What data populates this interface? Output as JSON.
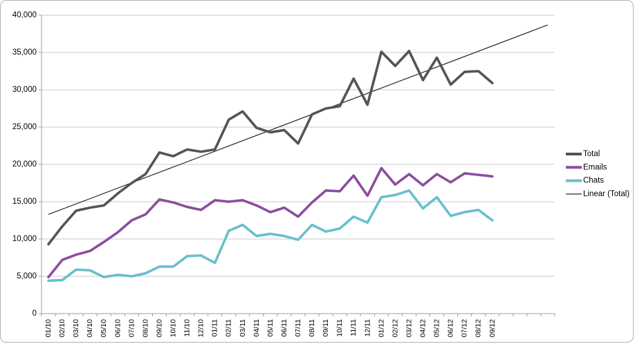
{
  "window": {
    "background": "#ffffff",
    "border_color": "#b2b2b2"
  },
  "style": {
    "gridline_color": "#c9c9c9",
    "axis_color": "#9c9c9c",
    "label_color": "#000000",
    "plot_background": "#ffffff"
  },
  "chart_data": {
    "type": "line",
    "title": "",
    "xlabel": "",
    "ylabel": "",
    "grid": true,
    "categories": [
      "01/10",
      "02/10",
      "03/10",
      "04/10",
      "05/10",
      "06/10",
      "07/10",
      "08/10",
      "09/10",
      "10/10",
      "11/10",
      "12/10",
      "01/11",
      "02/11",
      "03/11",
      "04/11",
      "05/11",
      "06/11",
      "07/11",
      "08/11",
      "09/11",
      "10/11",
      "11/11",
      "12/11",
      "01/12",
      "02/12",
      "03/12",
      "04/12",
      "05/12",
      "06/12",
      "07/12",
      "08/12",
      "09/12"
    ],
    "unlabeled_trailing_slots": 4,
    "series": [
      {
        "name": "Total",
        "color": "#55544e",
        "stroke_width": 3.6,
        "values": [
          9300,
          11700,
          13800,
          14200,
          14500,
          16100,
          17500,
          18700,
          21600,
          21100,
          22000,
          21700,
          22000,
          26000,
          27100,
          24900,
          24300,
          24600,
          22800,
          26700,
          27500,
          27800,
          31500,
          28000,
          35100,
          33200,
          35200,
          31300,
          34300,
          30700,
          32400,
          32500,
          30900
        ]
      },
      {
        "name": "Emails",
        "color": "#8b4e9c",
        "stroke_width": 3.6,
        "values": [
          4900,
          7200,
          7900,
          8400,
          9600,
          10900,
          12500,
          13300,
          15300,
          14900,
          14300,
          13900,
          15200,
          15000,
          15200,
          14500,
          13600,
          14200,
          13000,
          14900,
          16500,
          16400,
          18500,
          15800,
          19500,
          17300,
          18700,
          17200,
          18700,
          17600,
          18800,
          18600,
          18400
        ]
      },
      {
        "name": "Chats",
        "color": "#68bfcd",
        "stroke_width": 3.6,
        "values": [
          4400,
          4500,
          5900,
          5800,
          4900,
          5200,
          5000,
          5400,
          6300,
          6300,
          7700,
          7800,
          6800,
          11100,
          11900,
          10400,
          10700,
          10400,
          9900,
          11900,
          11000,
          11400,
          13000,
          12200,
          15600,
          15900,
          16500,
          14100,
          15600,
          13100,
          13600,
          13900,
          12500
        ]
      }
    ],
    "trendline": {
      "name": "Linear (Total)",
      "color": "#2b2b2b",
      "stroke_width": 1.2,
      "start_slot": 0,
      "end_slot": 36,
      "start_value": 13300,
      "end_value": 38700
    },
    "y_axis": {
      "min": 0,
      "max": 40000,
      "step": 5000,
      "tick_labels": [
        "0",
        "5,000",
        "10,000",
        "15,000",
        "20,000",
        "25,000",
        "30,000",
        "35,000",
        "40,000"
      ]
    },
    "legend": {
      "position": "right",
      "items": [
        "Total",
        "Emails",
        "Chats",
        "Linear (Total)"
      ]
    }
  }
}
